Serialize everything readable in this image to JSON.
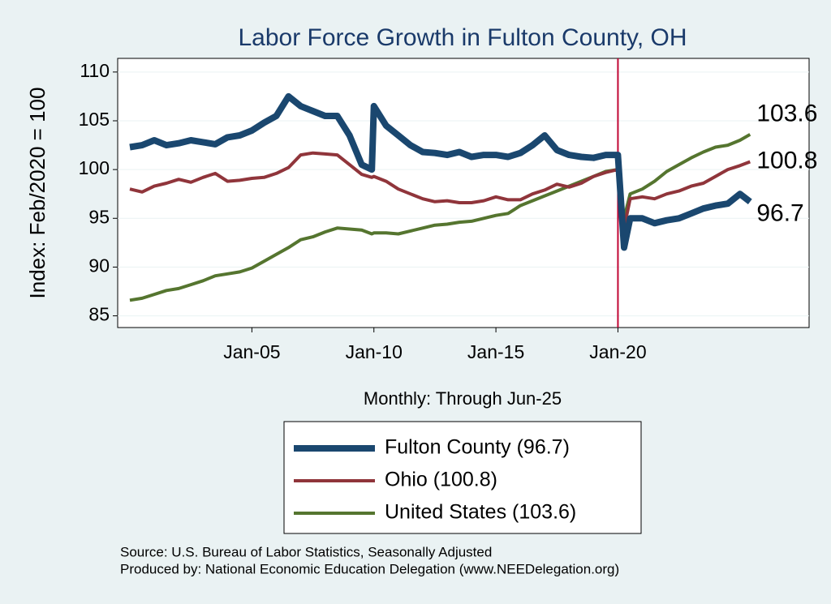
{
  "chart_data": {
    "type": "line",
    "title": "Labor Force Growth in Fulton  County, OH",
    "y_label": "Index: Feb/2020 = 100",
    "x_label": "Monthly: Through Jun-25",
    "source": [
      "Source: U.S. Bureau of Labor Statistics, Seasonally Adjusted",
      "Produced by: National Economic Education Delegation (www.NEEDelegation.org)"
    ],
    "x": [
      "Jan-00",
      "Jul-00",
      "Jan-01",
      "Jul-01",
      "Jan-02",
      "Jul-02",
      "Jan-03",
      "Jul-03",
      "Jan-04",
      "Jul-04",
      "Jan-05",
      "Jul-05",
      "Jan-06",
      "Jul-06",
      "Jan-07",
      "Jul-07",
      "Jan-08",
      "Jul-08",
      "Jan-09",
      "Jul-09",
      "Dec-09",
      "Jan-10",
      "Jul-10",
      "Jan-11",
      "Jul-11",
      "Jan-12",
      "Jul-12",
      "Jan-13",
      "Jul-13",
      "Jan-14",
      "Jul-14",
      "Jan-15",
      "Jul-15",
      "Jan-16",
      "Jul-16",
      "Jan-17",
      "Jul-17",
      "Jan-18",
      "Jul-18",
      "Jan-19",
      "Jul-19",
      "Jan-20",
      "Apr-20",
      "Jul-20",
      "Jan-21",
      "Jul-21",
      "Jan-22",
      "Jul-22",
      "Jan-23",
      "Jul-23",
      "Jan-24",
      "Jul-24",
      "Jan-25",
      "Jun-25"
    ],
    "series": [
      {
        "name": "Fulton  County (96.7)",
        "color": "#1a476f",
        "line_width": 8,
        "values": [
          102.3,
          102.5,
          103,
          102.5,
          102.7,
          103,
          102.8,
          102.6,
          103.3,
          103.5,
          104,
          104.8,
          105.5,
          107.5,
          106.5,
          106,
          105.5,
          105.5,
          103.5,
          100.5,
          100,
          106.5,
          104.5,
          103.5,
          102.5,
          101.8,
          101.7,
          101.5,
          101.8,
          101.3,
          101.5,
          101.5,
          101.3,
          101.7,
          102.5,
          103.5,
          102,
          101.5,
          101.3,
          101.2,
          101.5,
          101.5,
          92,
          95,
          95,
          94.5,
          94.8,
          95,
          95.5,
          96,
          96.3,
          96.5,
          97.5,
          96.7
        ]
      },
      {
        "name": "Ohio (100.8)",
        "color": "#90353b",
        "line_width": 4,
        "values": [
          98,
          97.7,
          98.3,
          98.6,
          99,
          98.7,
          99.2,
          99.6,
          98.8,
          98.9,
          99.1,
          99.2,
          99.6,
          100.2,
          101.5,
          101.7,
          101.6,
          101.5,
          100.5,
          99.5,
          99.2,
          99.3,
          98.8,
          98,
          97.5,
          97,
          96.7,
          96.8,
          96.6,
          96.6,
          96.8,
          97.2,
          96.9,
          96.9,
          97.5,
          97.9,
          98.5,
          98.2,
          98.6,
          99.3,
          99.7,
          100,
          94,
          97,
          97.2,
          97,
          97.5,
          97.8,
          98.3,
          98.6,
          99.3,
          100,
          100.4,
          100.8
        ]
      },
      {
        "name": "United States (103.6)",
        "color": "#55752f",
        "line_width": 4,
        "values": [
          86.6,
          86.8,
          87.2,
          87.6,
          87.8,
          88.2,
          88.6,
          89.1,
          89.3,
          89.5,
          89.9,
          90.6,
          91.3,
          92,
          92.8,
          93.1,
          93.6,
          94,
          93.9,
          93.8,
          93.4,
          93.5,
          93.5,
          93.4,
          93.7,
          94,
          94.3,
          94.4,
          94.6,
          94.7,
          95,
          95.3,
          95.5,
          96.3,
          96.8,
          97.3,
          97.8,
          98.3,
          98.8,
          99.3,
          99.8,
          100,
          95,
          97.5,
          98,
          98.8,
          99.8,
          100.5,
          101.2,
          101.8,
          102.3,
          102.5,
          103,
          103.6
        ]
      }
    ],
    "xlim": [
      "Jul-99",
      "Nov-27"
    ],
    "xticks": [
      "Jan-05",
      "Jan-10",
      "Jan-15",
      "Jan-20"
    ],
    "ylim": [
      83.8,
      111.4
    ],
    "yticks": [
      85,
      90,
      95,
      100,
      105,
      110
    ],
    "grid": true,
    "vline": "Jan-20",
    "vline_color": "#c10534"
  }
}
